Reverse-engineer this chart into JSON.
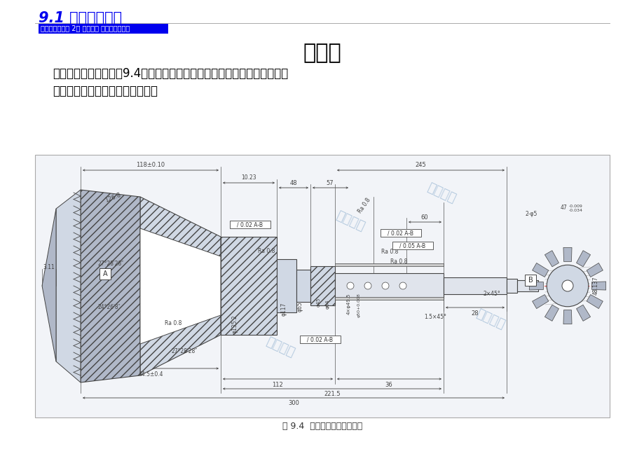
{
  "page_bg": "#ffffff",
  "title_text": "零件图",
  "title_fontsize": 22,
  "header_italic_text": "9.1 轴类零件工艺",
  "header_italic_fontsize": 15,
  "header_italic_color": "#0000ee",
  "header_sub_text": "机械制造工艺学 2版 郑修仁等 清华大学出版社",
  "header_sub_fontsize": 7,
  "header_sub_color": "#ffffff",
  "header_sub_bg": "#0000ee",
  "body_text_line1": "主动锥齿轮轴零件如图9.4所示。生产类型是大批大量，规模化生产。其机",
  "body_text_line2": "械加工工艺成熟，且具有代表性。",
  "body_text_fontsize": 12,
  "body_text_color": "#000000",
  "caption_text": "图 9.4  主动锥齿轮轴零件简图",
  "caption_fontsize": 9,
  "watermark_texts": [
    "张朔讲师",
    "张朔讲师",
    "张朔讲师",
    "张朔讲师",
    "张朔讲师",
    "张朔讲师"
  ],
  "dim_color": "#333333",
  "line_color": "#555555",
  "face_color": "#d0d8e4",
  "hatch_color": "#b0b8c8",
  "gear_color": "#c8d0dc",
  "body_color": "#e0e4ec",
  "bg_color": "#f2f4f8"
}
